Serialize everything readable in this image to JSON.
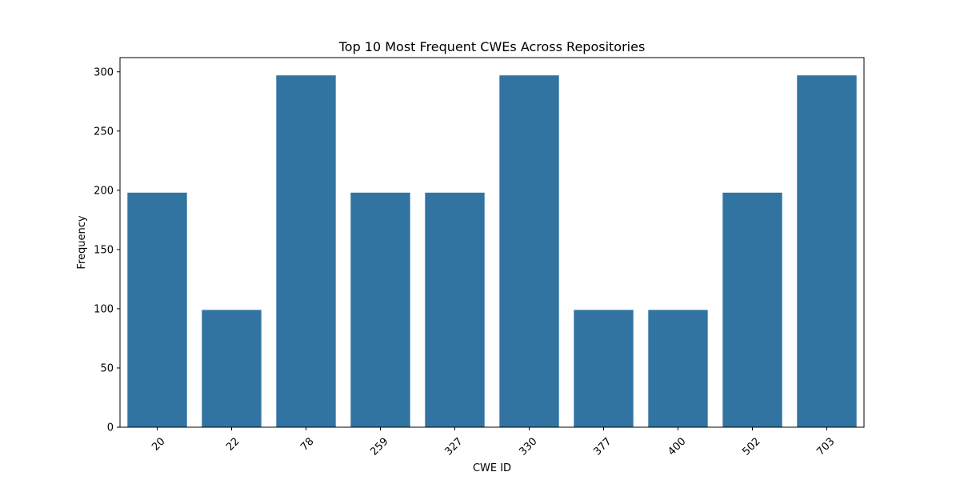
{
  "chart_data": {
    "type": "bar",
    "title": "Top 10 Most Frequent CWEs Across Repositories",
    "xlabel": "CWE ID",
    "ylabel": "Frequency",
    "categories": [
      "20",
      "22",
      "78",
      "259",
      "327",
      "330",
      "377",
      "400",
      "502",
      "703"
    ],
    "values": [
      198,
      99,
      297,
      198,
      198,
      297,
      99,
      99,
      198,
      297
    ],
    "ylim": [
      0,
      312
    ],
    "yticks": [
      0,
      50,
      100,
      150,
      200,
      250,
      300
    ],
    "grid": false,
    "bar_color": "#3274a1",
    "xtick_rotation": 45
  }
}
